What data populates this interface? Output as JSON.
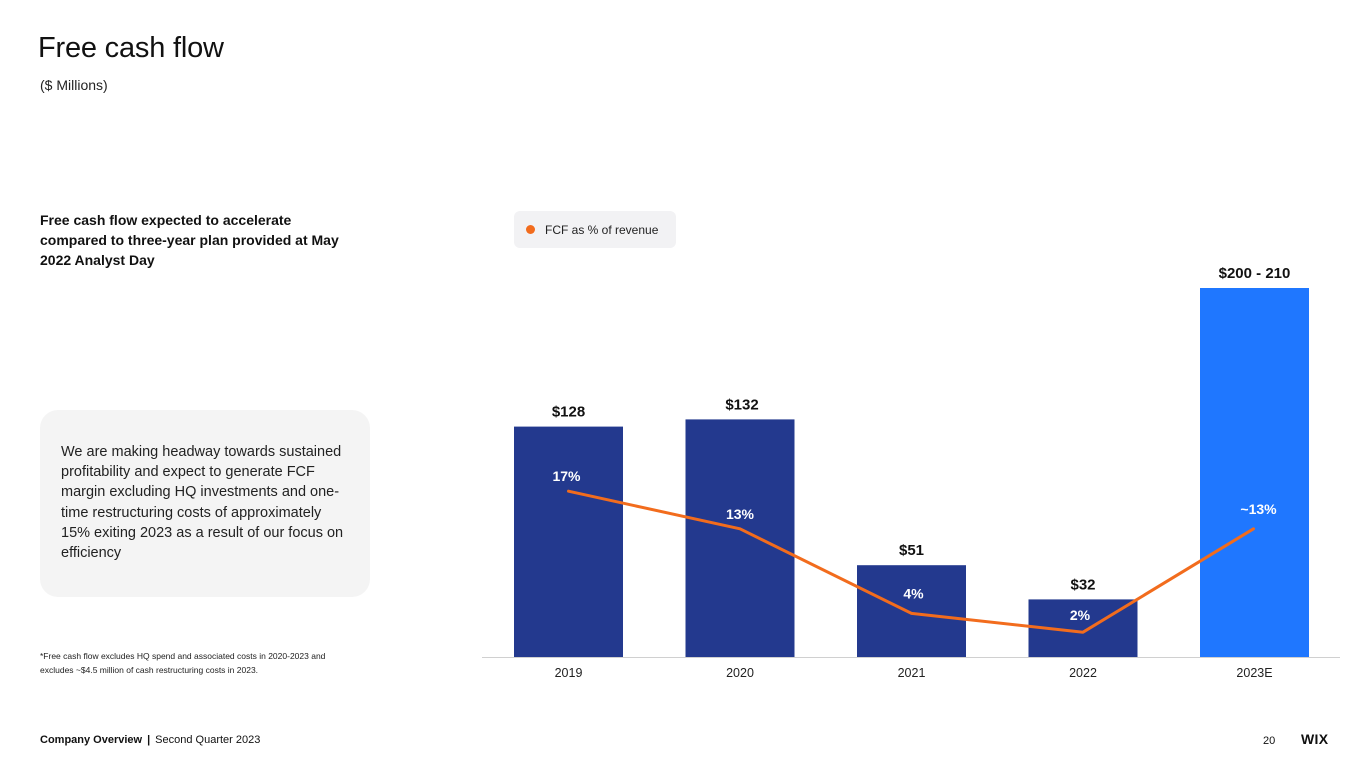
{
  "page": {
    "title": "Free cash flow",
    "subtitle": "($ Millions)",
    "headline": "Free cash flow expected to accelerate compared to three-year plan provided at May 2022 Analyst Day",
    "callout": "We are making headway towards sustained profitability and expect to generate FCF margin excluding HQ investments and one-time restructuring costs of approximately 15% exiting 2023 as a result of our focus on efficiency",
    "footnote": "*Free cash flow excludes HQ spend and associated costs in 2020-2023 and excludes ~$4.5 million of cash restructuring costs in 2023."
  },
  "footer": {
    "company": "Company Overview",
    "separator": "|",
    "period": "Second Quarter 2023",
    "page_number": "20",
    "logo": "WIX"
  },
  "legend": {
    "label": "FCF as % of revenue",
    "color": "#f26c1d"
  },
  "colors": {
    "actual_bar": "#23398e",
    "estimate_bar": "#1f77ff",
    "line": "#f26c1d",
    "axis": "#d0d0d0"
  },
  "chart_data": {
    "type": "bar",
    "categories": [
      "2019",
      "2020",
      "2021",
      "2022",
      "2023E"
    ],
    "series": [
      {
        "type": "bar",
        "values": [
          128,
          132,
          51,
          32,
          205
        ],
        "value_labels": [
          "$128",
          "$132",
          "$51",
          "$32",
          "$200 - 210"
        ],
        "estimate": [
          false,
          false,
          false,
          false,
          true
        ]
      },
      {
        "name": "FCF as % of revenue",
        "type": "line",
        "values": [
          17,
          13,
          4,
          2,
          13
        ],
        "value_labels": [
          "17%",
          "13%",
          "4%",
          "2%",
          "~13%"
        ]
      }
    ],
    "title": "",
    "xlabel": "",
    "ylabel": "",
    "ylim": [
      0,
      210
    ],
    "grid": false,
    "legend": "top-left"
  }
}
